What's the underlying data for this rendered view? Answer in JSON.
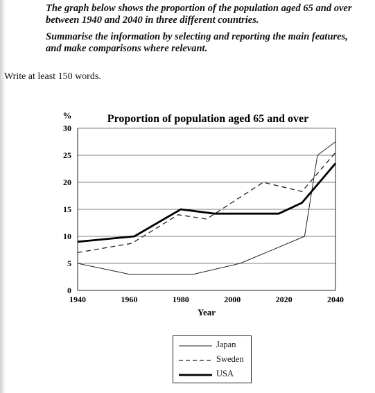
{
  "prompt": {
    "line1": "The graph below shows the proportion of the population aged 65 and over between 1940 and 2040 in three different countries.",
    "line2": "Summarise the information by selecting and reporting the main features, and make comparisons where relevant.",
    "instruction": "Write at least 150 words."
  },
  "chart_data": {
    "type": "line",
    "title": "Proportion of population aged 65 and over",
    "xlabel": "Year",
    "ylabel": "%",
    "xlim": [
      1940,
      2040
    ],
    "ylim": [
      0,
      30
    ],
    "x_ticks": [
      1940,
      1960,
      1980,
      2000,
      2020,
      2040
    ],
    "y_ticks": [
      0,
      5,
      10,
      15,
      20,
      25,
      30
    ],
    "grid": "horizontal",
    "legend_position": "bottom-center",
    "series": [
      {
        "name": "Japan",
        "style": "solid-thin",
        "x": [
          1940,
          1960,
          1985,
          2003,
          2028,
          2033,
          2040
        ],
        "values": [
          5,
          3,
          3,
          5,
          10,
          25,
          27.5
        ]
      },
      {
        "name": "Sweden",
        "style": "dashed",
        "x": [
          1940,
          1961,
          1979,
          1990,
          2012,
          2027,
          2040
        ],
        "values": [
          7,
          8.7,
          14,
          13.2,
          20,
          18.3,
          25.5
        ]
      },
      {
        "name": "USA",
        "style": "solid-thick",
        "x": [
          1940,
          1962,
          1980,
          1993,
          2018,
          2027,
          2040
        ],
        "values": [
          9,
          10,
          15,
          14.2,
          14.2,
          16.2,
          23.5
        ]
      }
    ]
  }
}
